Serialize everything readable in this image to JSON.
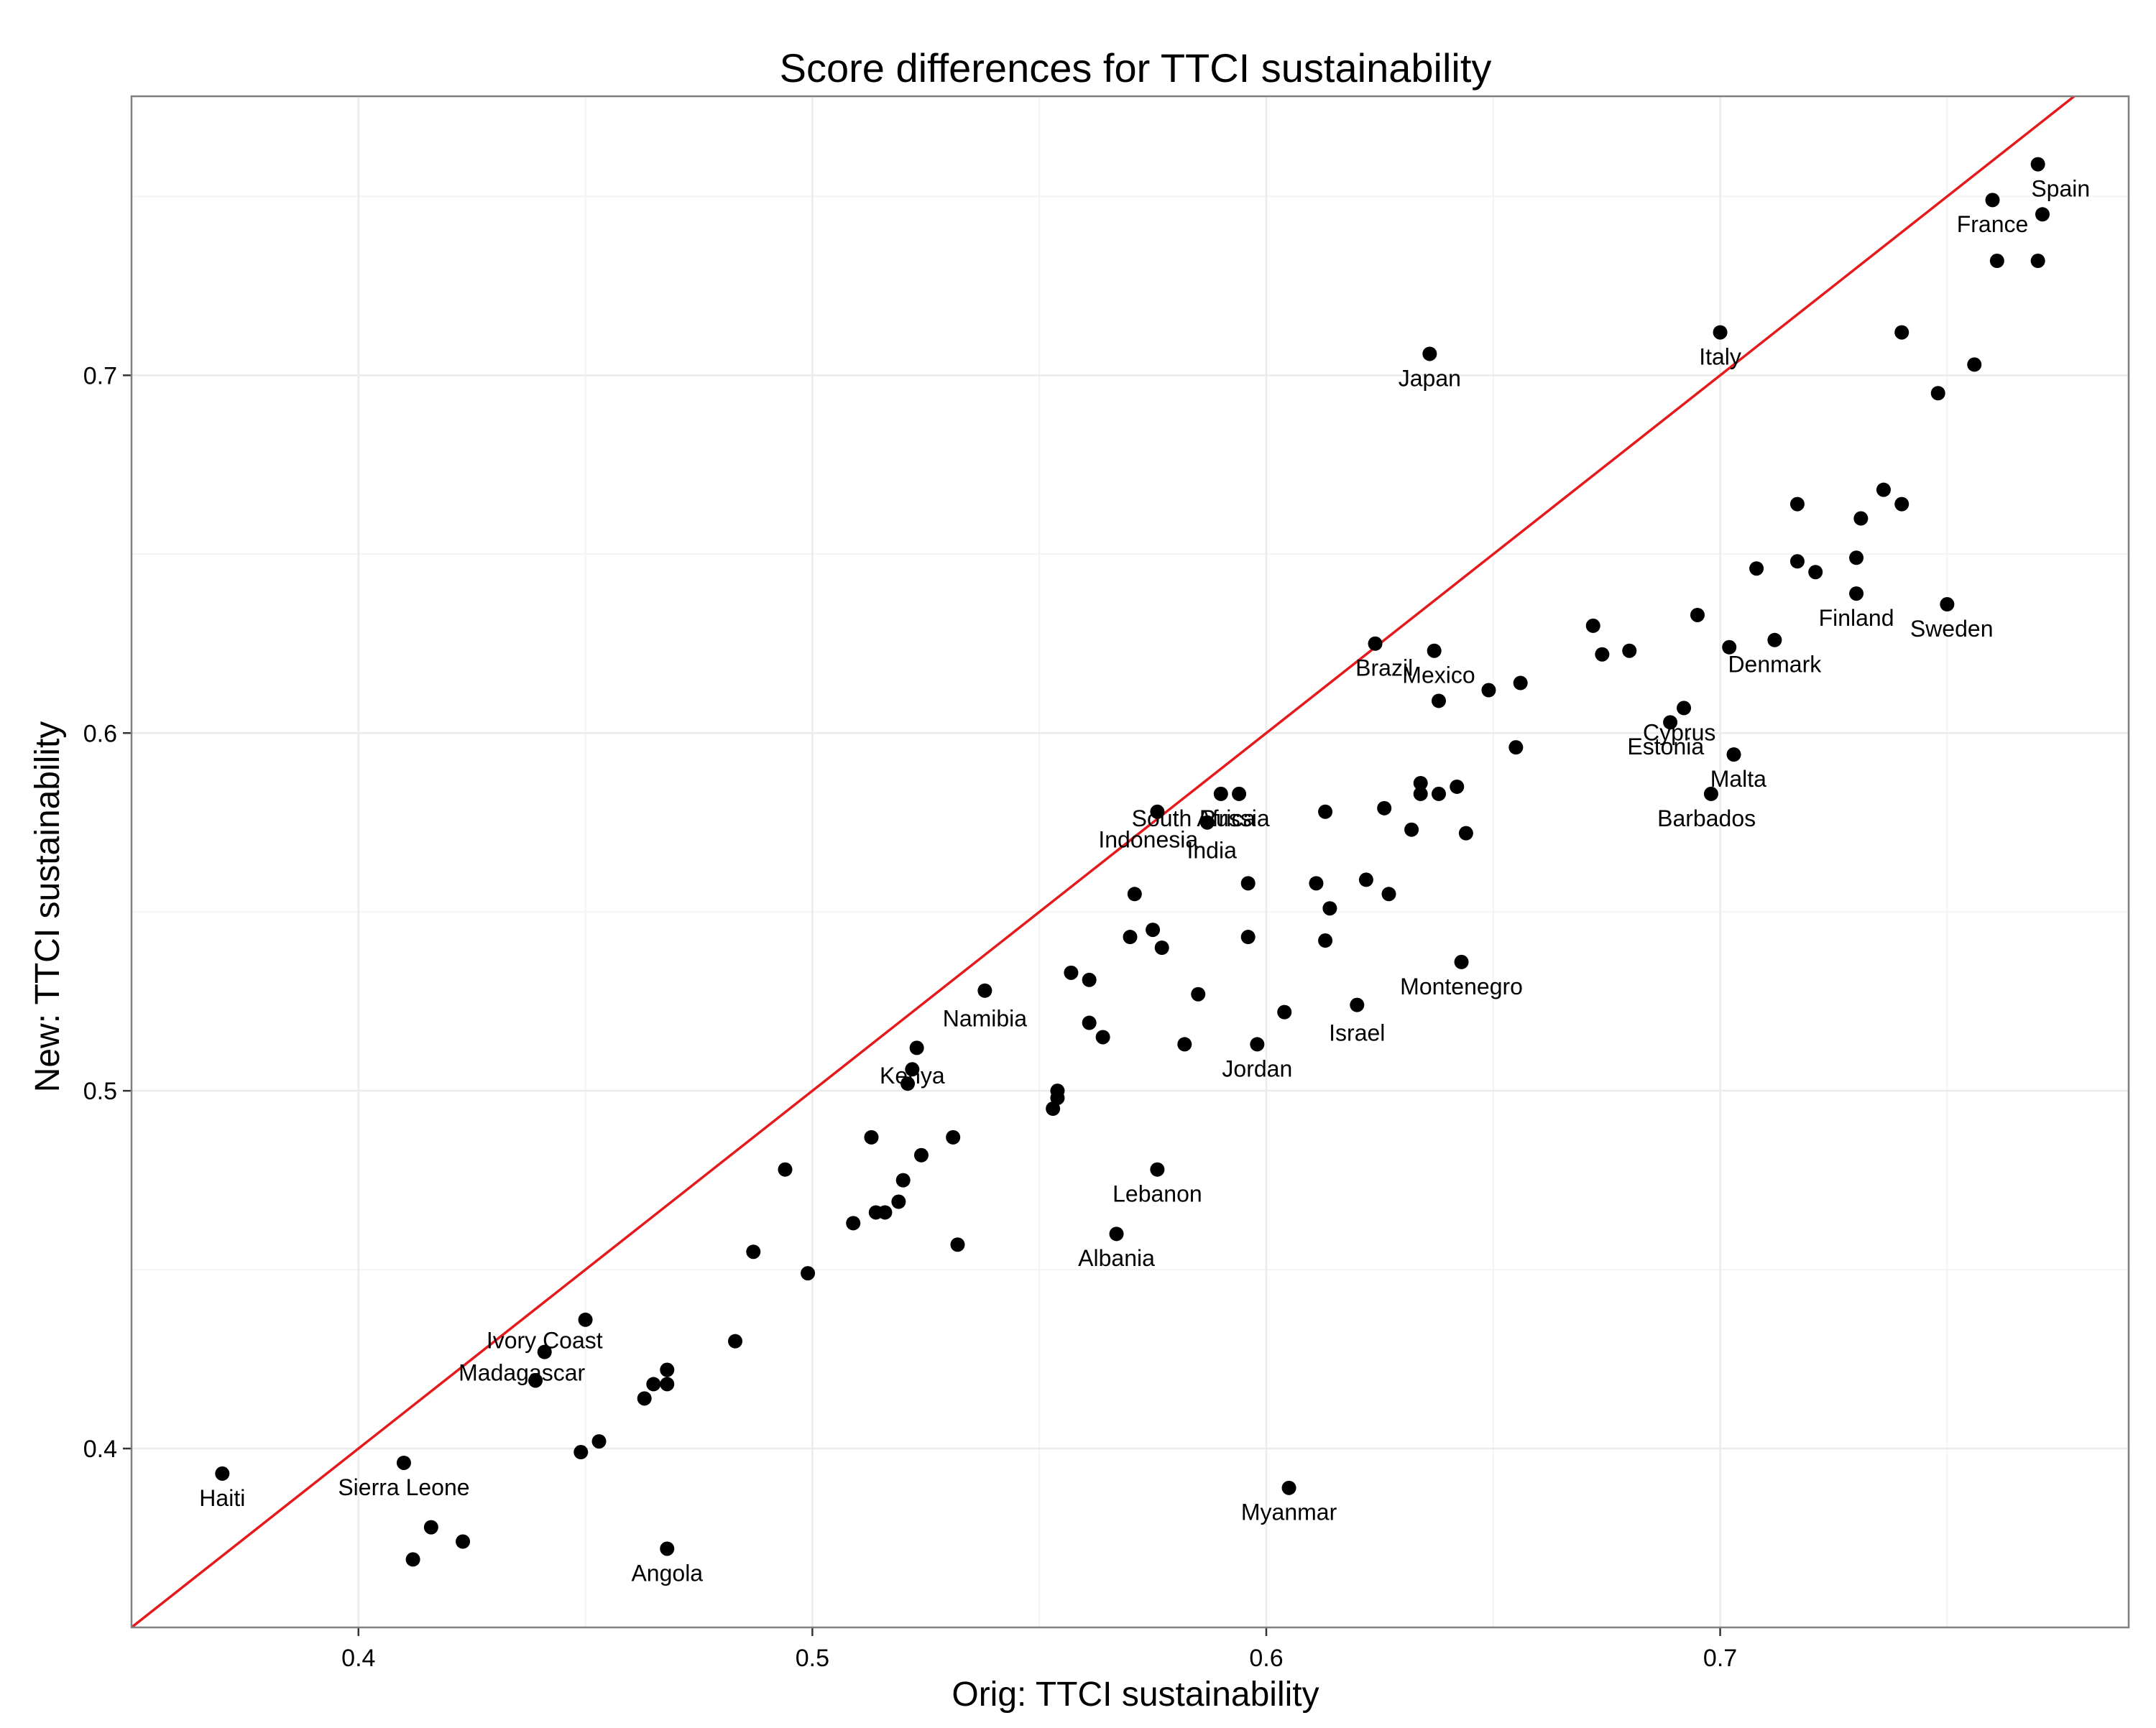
{
  "chart_data": {
    "type": "scatter",
    "title": "Score differences for TTCI sustainability",
    "xlabel": "Orig: TTCI sustainability",
    "ylabel": "New: TTCI sustainability",
    "xlim": [
      0.35,
      0.79
    ],
    "ylim": [
      0.35,
      0.778
    ],
    "x_ticks": [
      0.4,
      0.5,
      0.6,
      0.7
    ],
    "y_ticks": [
      0.4,
      0.5,
      0.6,
      0.7
    ],
    "x_tick_labels": [
      "0.4",
      "0.5",
      "0.6",
      "0.7"
    ],
    "y_tick_labels": [
      "0.4",
      "0.5",
      "0.6",
      "0.7"
    ],
    "grid": true,
    "reference_line": {
      "type": "identity",
      "slope": 1,
      "intercept": 0,
      "color": "#e41a1c"
    },
    "colors": {
      "points": "#000000",
      "line": "#e41a1c",
      "grid": "#ebebeb"
    },
    "points": [
      {
        "x": 0.77,
        "y": 0.759
      },
      {
        "x": 0.76,
        "y": 0.749
      },
      {
        "x": 0.771,
        "y": 0.745
      },
      {
        "x": 0.761,
        "y": 0.732
      },
      {
        "x": 0.77,
        "y": 0.732
      },
      {
        "x": 0.74,
        "y": 0.712
      },
      {
        "x": 0.756,
        "y": 0.703
      },
      {
        "x": 0.748,
        "y": 0.695
      },
      {
        "x": 0.736,
        "y": 0.668
      },
      {
        "x": 0.74,
        "y": 0.664
      },
      {
        "x": 0.717,
        "y": 0.664
      },
      {
        "x": 0.731,
        "y": 0.66
      },
      {
        "x": 0.73,
        "y": 0.649
      },
      {
        "x": 0.717,
        "y": 0.648
      },
      {
        "x": 0.708,
        "y": 0.646
      },
      {
        "x": 0.721,
        "y": 0.645
      },
      {
        "x": 0.73,
        "y": 0.639
      },
      {
        "x": 0.75,
        "y": 0.636
      },
      {
        "x": 0.695,
        "y": 0.633
      },
      {
        "x": 0.712,
        "y": 0.626
      },
      {
        "x": 0.702,
        "y": 0.624
      },
      {
        "x": 0.672,
        "y": 0.63
      },
      {
        "x": 0.674,
        "y": 0.622
      },
      {
        "x": 0.68,
        "y": 0.623
      },
      {
        "x": 0.692,
        "y": 0.607
      },
      {
        "x": 0.689,
        "y": 0.603
      },
      {
        "x": 0.703,
        "y": 0.594
      },
      {
        "x": 0.698,
        "y": 0.583
      },
      {
        "x": 0.7,
        "y": 0.712
      },
      {
        "x": 0.636,
        "y": 0.706
      },
      {
        "x": 0.624,
        "y": 0.625
      },
      {
        "x": 0.637,
        "y": 0.623
      },
      {
        "x": 0.638,
        "y": 0.609
      },
      {
        "x": 0.649,
        "y": 0.612
      },
      {
        "x": 0.656,
        "y": 0.614
      },
      {
        "x": 0.655,
        "y": 0.596
      },
      {
        "x": 0.634,
        "y": 0.586
      },
      {
        "x": 0.634,
        "y": 0.583
      },
      {
        "x": 0.638,
        "y": 0.583
      },
      {
        "x": 0.642,
        "y": 0.585
      },
      {
        "x": 0.626,
        "y": 0.579
      },
      {
        "x": 0.632,
        "y": 0.573
      },
      {
        "x": 0.644,
        "y": 0.572
      },
      {
        "x": 0.613,
        "y": 0.578
      },
      {
        "x": 0.59,
        "y": 0.583
      },
      {
        "x": 0.594,
        "y": 0.583
      },
      {
        "x": 0.576,
        "y": 0.578
      },
      {
        "x": 0.587,
        "y": 0.575
      },
      {
        "x": 0.596,
        "y": 0.558
      },
      {
        "x": 0.611,
        "y": 0.558
      },
      {
        "x": 0.622,
        "y": 0.559
      },
      {
        "x": 0.627,
        "y": 0.555
      },
      {
        "x": 0.614,
        "y": 0.551
      },
      {
        "x": 0.596,
        "y": 0.543
      },
      {
        "x": 0.613,
        "y": 0.542
      },
      {
        "x": 0.643,
        "y": 0.536
      },
      {
        "x": 0.571,
        "y": 0.555
      },
      {
        "x": 0.57,
        "y": 0.543
      },
      {
        "x": 0.575,
        "y": 0.545
      },
      {
        "x": 0.577,
        "y": 0.54
      },
      {
        "x": 0.557,
        "y": 0.533
      },
      {
        "x": 0.561,
        "y": 0.531
      },
      {
        "x": 0.538,
        "y": 0.528
      },
      {
        "x": 0.585,
        "y": 0.527
      },
      {
        "x": 0.604,
        "y": 0.522
      },
      {
        "x": 0.62,
        "y": 0.524
      },
      {
        "x": 0.561,
        "y": 0.519
      },
      {
        "x": 0.564,
        "y": 0.515
      },
      {
        "x": 0.582,
        "y": 0.513
      },
      {
        "x": 0.598,
        "y": 0.513
      },
      {
        "x": 0.523,
        "y": 0.512
      },
      {
        "x": 0.522,
        "y": 0.506
      },
      {
        "x": 0.521,
        "y": 0.502
      },
      {
        "x": 0.554,
        "y": 0.5
      },
      {
        "x": 0.554,
        "y": 0.498
      },
      {
        "x": 0.553,
        "y": 0.495
      },
      {
        "x": 0.494,
        "y": 0.478
      },
      {
        "x": 0.513,
        "y": 0.487
      },
      {
        "x": 0.531,
        "y": 0.487
      },
      {
        "x": 0.524,
        "y": 0.482
      },
      {
        "x": 0.52,
        "y": 0.475
      },
      {
        "x": 0.519,
        "y": 0.469
      },
      {
        "x": 0.514,
        "y": 0.466
      },
      {
        "x": 0.516,
        "y": 0.466
      },
      {
        "x": 0.509,
        "y": 0.463
      },
      {
        "x": 0.576,
        "y": 0.478
      },
      {
        "x": 0.567,
        "y": 0.46
      },
      {
        "x": 0.532,
        "y": 0.457
      },
      {
        "x": 0.487,
        "y": 0.455
      },
      {
        "x": 0.499,
        "y": 0.449
      },
      {
        "x": 0.45,
        "y": 0.436
      },
      {
        "x": 0.483,
        "y": 0.43
      },
      {
        "x": 0.441,
        "y": 0.427
      },
      {
        "x": 0.439,
        "y": 0.419
      },
      {
        "x": 0.468,
        "y": 0.422
      },
      {
        "x": 0.465,
        "y": 0.418
      },
      {
        "x": 0.468,
        "y": 0.418
      },
      {
        "x": 0.463,
        "y": 0.414
      },
      {
        "x": 0.453,
        "y": 0.402
      },
      {
        "x": 0.449,
        "y": 0.399
      },
      {
        "x": 0.41,
        "y": 0.396
      },
      {
        "x": 0.37,
        "y": 0.393
      },
      {
        "x": 0.605,
        "y": 0.389
      },
      {
        "x": 0.416,
        "y": 0.378
      },
      {
        "x": 0.423,
        "y": 0.374
      },
      {
        "x": 0.412,
        "y": 0.369
      },
      {
        "x": 0.468,
        "y": 0.372
      }
    ],
    "annotations": [
      {
        "text": "Spain",
        "x": 0.775,
        "y": 0.752
      },
      {
        "text": "France",
        "x": 0.76,
        "y": 0.742
      },
      {
        "text": "Italy",
        "x": 0.7,
        "y": 0.705
      },
      {
        "text": "Japan",
        "x": 0.636,
        "y": 0.699
      },
      {
        "text": "Finland",
        "x": 0.73,
        "y": 0.632
      },
      {
        "text": "Sweden",
        "x": 0.751,
        "y": 0.629
      },
      {
        "text": "Denmark",
        "x": 0.712,
        "y": 0.619
      },
      {
        "text": "Brazil",
        "x": 0.626,
        "y": 0.618
      },
      {
        "text": "Mexico",
        "x": 0.638,
        "y": 0.616
      },
      {
        "text": "Cyprus",
        "x": 0.691,
        "y": 0.6
      },
      {
        "text": "Estonia",
        "x": 0.688,
        "y": 0.596
      },
      {
        "text": "Malta",
        "x": 0.704,
        "y": 0.587
      },
      {
        "text": "Barbados",
        "x": 0.697,
        "y": 0.576
      },
      {
        "text": "South Africa",
        "x": 0.584,
        "y": 0.576
      },
      {
        "text": "Russia",
        "x": 0.593,
        "y": 0.576
      },
      {
        "text": "Indonesia",
        "x": 0.574,
        "y": 0.57
      },
      {
        "text": "India",
        "x": 0.588,
        "y": 0.567
      },
      {
        "text": "Montenegro",
        "x": 0.643,
        "y": 0.529
      },
      {
        "text": "Namibia",
        "x": 0.538,
        "y": 0.52
      },
      {
        "text": "Israel",
        "x": 0.62,
        "y": 0.516
      },
      {
        "text": "Jordan",
        "x": 0.598,
        "y": 0.506
      },
      {
        "text": "Kenya",
        "x": 0.522,
        "y": 0.504
      },
      {
        "text": "Lebanon",
        "x": 0.576,
        "y": 0.471
      },
      {
        "text": "Albania",
        "x": 0.567,
        "y": 0.453
      },
      {
        "text": "Ivory Coast",
        "x": 0.441,
        "y": 0.43
      },
      {
        "text": "Madagascar",
        "x": 0.436,
        "y": 0.421
      },
      {
        "text": "Sierra Leone",
        "x": 0.41,
        "y": 0.389
      },
      {
        "text": "Haiti",
        "x": 0.37,
        "y": 0.386
      },
      {
        "text": "Myanmar",
        "x": 0.605,
        "y": 0.382
      },
      {
        "text": "Angola",
        "x": 0.468,
        "y": 0.365
      }
    ]
  }
}
